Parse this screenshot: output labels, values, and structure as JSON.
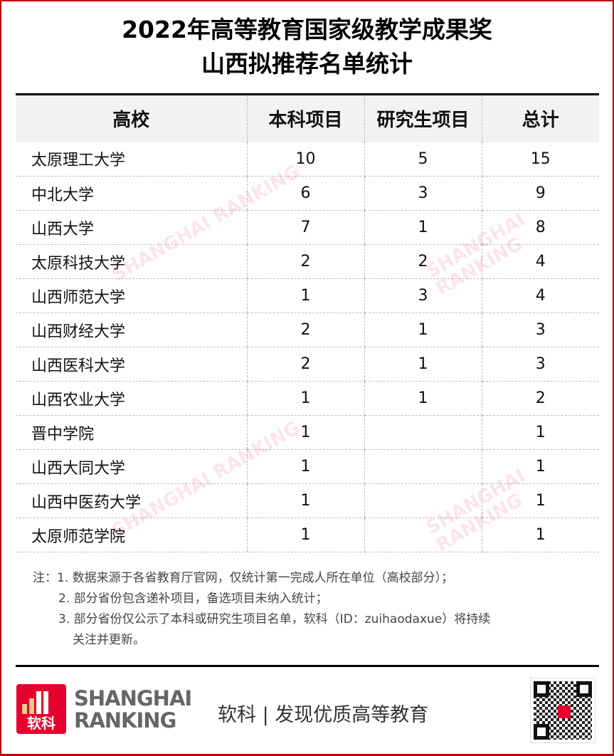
{
  "title": {
    "line1": "2022年高等教育国家级教学成果奖",
    "line2": "山西拟推荐名单统计"
  },
  "table": {
    "headers": [
      "高校",
      "本科项目",
      "研究生项目",
      "总计"
    ],
    "rows": [
      [
        "太原理工大学",
        "10",
        "5",
        "15"
      ],
      [
        "中北大学",
        "6",
        "3",
        "9"
      ],
      [
        "山西大学",
        "7",
        "1",
        "8"
      ],
      [
        "太原科技大学",
        "2",
        "2",
        "4"
      ],
      [
        "山西师范大学",
        "1",
        "3",
        "4"
      ],
      [
        "山西财经大学",
        "2",
        "1",
        "3"
      ],
      [
        "山西医科大学",
        "2",
        "1",
        "3"
      ],
      [
        "山西农业大学",
        "1",
        "1",
        "2"
      ],
      [
        "晋中学院",
        "1",
        "",
        "1"
      ],
      [
        "山西大同大学",
        "1",
        "",
        "1"
      ],
      [
        "山西中医药大学",
        "1",
        "",
        "1"
      ],
      [
        "太原师范学院",
        "1",
        "",
        "1"
      ]
    ]
  },
  "notes": [
    "注：1. 数据来源于各省教育厅官网，仅统计第一完成人所在单位（高校部分）；",
    "2. 部分省份包含递补项目，备选项目未纳入统计；",
    "3. 部分省份仅公示了本科或研究生项目名单，软科（ID：zuihaodaxue）将持续",
    "关注并更新。"
  ],
  "footer": {
    "logo_text": "软科",
    "brand_line1": "SHANGHAI",
    "brand_line2": "RANKING",
    "slogan": "软科 | 发现优质高等教育"
  },
  "watermark": "SHANGHAI RANKING",
  "colors": {
    "brand_red": "#e6002d",
    "border_red": "#c00000",
    "header_bg": "#f2f2f2"
  }
}
